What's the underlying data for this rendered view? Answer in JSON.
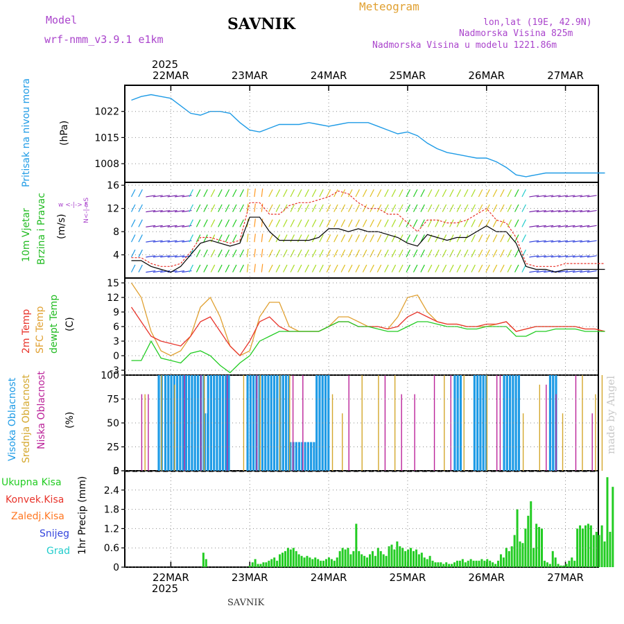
{
  "header": {
    "model_label": "Model",
    "model_name": "wrf-nmm_v3.9.1  e1km",
    "title": "SAVNIK",
    "meteogram_label": "Meteogram",
    "lonlat": "lon,lat (19E, 42.9N)",
    "altitude": "Nadmorska Visina 825m",
    "model_altitude": "Nadmorska Visina u modelu 1221.86m"
  },
  "footer": {
    "station": "SAVNIK",
    "credit": "made by Angel"
  },
  "colors": {
    "pressure": "#1e9be6",
    "wind_label": "#22bb22",
    "wind_dir": "#aa44cc",
    "temp_2m": "#e8332a",
    "temp_sfc": "#e0a030",
    "dewpt": "#22cc22",
    "cloud_high": "#1e9be6",
    "cloud_mid": "#d4a72c",
    "cloud_low": "#bb2299",
    "precip_total": "#22cc22",
    "precip_conv": "#e8332a",
    "precip_frozen": "#ff7722",
    "snow": "#3344dd",
    "hail": "#22cccc"
  },
  "time_axis": {
    "year": "2025",
    "days": [
      "22MAR",
      "23MAR",
      "24MAR",
      "25MAR",
      "26MAR",
      "27MAR"
    ]
  },
  "panels": {
    "pressure": {
      "label": "Pritisak na nivou mora",
      "unit": "(hPa)"
    },
    "wind": {
      "label1": "10m  Vjetar",
      "label2": "Brzina i Pravac",
      "unit": "(m/s)",
      "compass": "w  <-|->  E",
      "compass_ns": "N<-|->S"
    },
    "temp": {
      "label1": "2m Temp",
      "label2": "SFC Temp",
      "label3": "dewpt Temp",
      "unit": "(C)"
    },
    "cloud": {
      "label1": "Visoka Oblacnost",
      "label2": "Srednja Oblacnost",
      "label3": "Niska Oblacnost",
      "unit": "(%)"
    },
    "precip": {
      "unit": "1hr Precip (mm)",
      "legend": [
        "Ukupna Kisa",
        "Konvek.Kisa",
        "Zaledj.Kisa",
        "Snijeg",
        "Grad"
      ]
    }
  },
  "chart_data": [
    {
      "type": "line",
      "name": "pressure",
      "x": [
        0,
        3,
        6,
        9,
        12,
        15,
        18,
        21,
        24,
        27,
        30,
        33,
        36,
        39,
        42,
        45,
        48,
        51,
        54,
        57,
        60,
        63,
        66,
        69,
        72,
        75,
        78,
        81,
        84,
        87,
        90,
        93,
        96,
        99,
        102,
        105,
        108,
        111,
        114,
        117,
        120,
        123,
        126,
        129,
        132,
        135,
        138,
        141,
        144
      ],
      "series": [
        {
          "name": "Pritisak na nivou mora",
          "values": [
            1025,
            1026,
            1026.5,
            1026,
            1025.5,
            1023.5,
            1021.5,
            1021,
            1022,
            1022,
            1021.5,
            1019,
            1017,
            1016.5,
            1017.5,
            1018.5,
            1018.5,
            1018.5,
            1019,
            1018.5,
            1018,
            1018.5,
            1019,
            1019,
            1019,
            1018,
            1017,
            1016,
            1016.5,
            1015.5,
            1013.5,
            1012,
            1011,
            1010.5,
            1010,
            1009.5,
            1009.5,
            1008.5,
            1007,
            1005,
            1004.5,
            1005,
            1005.5,
            1005.5,
            1005.5,
            1005.5,
            1005.5,
            1005.5,
            1005.5
          ]
        }
      ],
      "ylim": [
        1003,
        1029
      ],
      "yticks": [
        1008,
        1015,
        1022
      ]
    },
    {
      "type": "line",
      "name": "wind",
      "x": [
        0,
        3,
        6,
        9,
        12,
        15,
        18,
        21,
        24,
        27,
        30,
        33,
        36,
        39,
        42,
        45,
        48,
        51,
        54,
        57,
        60,
        63,
        66,
        69,
        72,
        75,
        78,
        81,
        84,
        87,
        90,
        93,
        96,
        99,
        102,
        105,
        108,
        111,
        114,
        117,
        120,
        123,
        126,
        129,
        132,
        135,
        138,
        141,
        144
      ],
      "series": [
        {
          "name": "10m Vjetar",
          "values": [
            3,
            3,
            2,
            1.5,
            1,
            2,
            4,
            6,
            6.5,
            6,
            5.5,
            6,
            10.5,
            10.5,
            8,
            6.5,
            6.5,
            6.5,
            6.5,
            7,
            8.5,
            8.5,
            8,
            8.5,
            8,
            8,
            7.5,
            7,
            6,
            5.5,
            7.5,
            7,
            6.5,
            7,
            7,
            8,
            9,
            8,
            8,
            6,
            2,
            1.5,
            1.5,
            1,
            1.5,
            1.5,
            1.5,
            1.5,
            1.5
          ]
        },
        {
          "name": "gust",
          "values": [
            3.5,
            3.5,
            2.5,
            2,
            2,
            2.5,
            4.5,
            7,
            7,
            6.5,
            6,
            6.5,
            13,
            13,
            11,
            11,
            12.5,
            13,
            13,
            13.5,
            14,
            15,
            14.5,
            13,
            12,
            12,
            11,
            11,
            9.5,
            8,
            10,
            10,
            9.5,
            9.5,
            10,
            11,
            12,
            10,
            9.5,
            7,
            2.5,
            2,
            2,
            2,
            2.5,
            2.5,
            2.5,
            2.5,
            2.5
          ]
        }
      ],
      "ylim": [
        0,
        16.5
      ],
      "yticks": [
        4,
        8,
        12,
        16
      ]
    },
    {
      "type": "line",
      "name": "temperature",
      "x": [
        0,
        3,
        6,
        9,
        12,
        15,
        18,
        21,
        24,
        27,
        30,
        33,
        36,
        39,
        42,
        45,
        48,
        51,
        54,
        57,
        60,
        63,
        66,
        69,
        72,
        75,
        78,
        81,
        84,
        87,
        90,
        93,
        96,
        99,
        102,
        105,
        108,
        111,
        114,
        117,
        120,
        123,
        126,
        129,
        132,
        135,
        138,
        141,
        144
      ],
      "series": [
        {
          "name": "2m Temp",
          "values": [
            10,
            7,
            4,
            3,
            2.5,
            2,
            4,
            7,
            8,
            5,
            2,
            0,
            3,
            7,
            8,
            6,
            5,
            5,
            5,
            5,
            6,
            7,
            7,
            6,
            6,
            6,
            5.5,
            6,
            8,
            9,
            8,
            7,
            6.5,
            6.5,
            6,
            6,
            6.5,
            6.5,
            7,
            5,
            5.5,
            6,
            6,
            6,
            6,
            6,
            5.5,
            5.5,
            5
          ]
        },
        {
          "name": "SFC Temp",
          "values": [
            15,
            12,
            5,
            1,
            0,
            1,
            4,
            10,
            12,
            8,
            2,
            0,
            1,
            8,
            11,
            11,
            6,
            5,
            5,
            5,
            6,
            8,
            8,
            7,
            6,
            6,
            5.5,
            8,
            12,
            12.5,
            9,
            7,
            6.5,
            6.5,
            6,
            6,
            6,
            6.5,
            7,
            5,
            5.5,
            6,
            6,
            6,
            6,
            6,
            5.5,
            5.5,
            5
          ]
        },
        {
          "name": "dewpt Temp",
          "values": [
            -1,
            -1,
            3,
            -0.5,
            -1,
            -1.5,
            0.5,
            1,
            0,
            -2,
            -3.5,
            -1.5,
            0,
            3,
            4,
            5,
            5,
            5,
            5,
            5,
            6,
            7,
            7,
            6,
            6,
            5.5,
            5,
            5,
            6,
            7,
            7,
            6.5,
            6,
            6,
            5.5,
            5.5,
            6,
            6,
            6,
            4,
            4,
            5,
            5,
            5.5,
            5.5,
            5.5,
            5,
            5,
            5
          ]
        }
      ],
      "ylim": [
        -4,
        16
      ],
      "yticks": [
        -3,
        0,
        3,
        6,
        9,
        12,
        15
      ]
    },
    {
      "type": "bar",
      "name": "cloud",
      "series": [
        {
          "name": "Visoka Oblacnost",
          "intervals": [
            [
              8,
              9,
              100
            ],
            [
              9,
              10,
              0
            ],
            [
              10,
              22,
              100
            ],
            [
              22,
              23,
              60
            ],
            [
              23,
              30,
              100
            ],
            [
              30,
              35,
              0
            ],
            [
              35,
              48,
              100
            ],
            [
              48,
              56,
              30
            ],
            [
              56,
              60,
              100
            ],
            [
              60,
              75,
              0
            ],
            [
              75,
              98,
              0
            ],
            [
              98,
              100,
              100
            ],
            [
              100,
              104,
              0
            ],
            [
              104,
              108,
              100
            ],
            [
              108,
              113,
              0
            ],
            [
              113,
              118,
              100
            ],
            [
              118,
              127,
              0
            ],
            [
              127,
              129,
              100
            ]
          ]
        },
        {
          "name": "Srednja Oblacnost",
          "intervals": [
            [
              4,
              5,
              80
            ],
            [
              9,
              10,
              100
            ],
            [
              13,
              14,
              90
            ],
            [
              22,
              23,
              100
            ],
            [
              34,
              35,
              100
            ],
            [
              39,
              40,
              100
            ],
            [
              45,
              46,
              100
            ],
            [
              48,
              49,
              100
            ],
            [
              61,
              62,
              80
            ],
            [
              64,
              65,
              60
            ],
            [
              70,
              71,
              100
            ],
            [
              75,
              76,
              100
            ],
            [
              80,
              81,
              100
            ],
            [
              95,
              96,
              100
            ],
            [
              101,
              102,
              100
            ],
            [
              108,
              109,
              100
            ],
            [
              119,
              120,
              60
            ],
            [
              124,
              125,
              90
            ],
            [
              131,
              132,
              60
            ],
            [
              137,
              138,
              100
            ],
            [
              141,
              142,
              80
            ],
            [
              143,
              144,
              100
            ]
          ]
        },
        {
          "name": "Niska Oblacnost",
          "intervals": [
            [
              3,
              4,
              80
            ],
            [
              5,
              6,
              80
            ],
            [
              16,
              17,
              100
            ],
            [
              21,
              22,
              100
            ],
            [
              29,
              30,
              100
            ],
            [
              38,
              39,
              100
            ],
            [
              49,
              50,
              100
            ],
            [
              52,
              53,
              100
            ],
            [
              66,
              67,
              100
            ],
            [
              77,
              78,
              100
            ],
            [
              82,
              83,
              80
            ],
            [
              86,
              87,
              80
            ],
            [
              92,
              93,
              100
            ],
            [
              97,
              98,
              100
            ],
            [
              111,
              112,
              100
            ],
            [
              112,
              113,
              100
            ],
            [
              126,
              127,
              90
            ],
            [
              129,
              130,
              80
            ],
            [
              135,
              136,
              100
            ],
            [
              140,
              141,
              60
            ]
          ]
        }
      ],
      "ylim": [
        0,
        100
      ],
      "yticks": [
        0,
        25,
        50,
        75,
        100
      ]
    },
    {
      "type": "bar",
      "name": "precipitation",
      "series": [
        {
          "name": "Ukupna Kisa",
          "values": [
            0,
            0,
            0,
            0,
            0,
            0,
            0,
            0,
            0,
            0,
            0,
            0,
            0,
            0,
            0,
            0,
            0,
            0,
            0,
            0,
            0,
            0,
            0,
            0,
            0,
            0,
            0.45,
            0.25,
            0,
            0,
            0,
            0,
            0,
            0,
            0,
            0,
            0,
            0,
            0,
            0,
            0,
            0,
            0,
            0.05,
            0.15,
            0.25,
            0.1,
            0.1,
            0.15,
            0.15,
            0.2,
            0.25,
            0.3,
            0.2,
            0.4,
            0.45,
            0.5,
            0.6,
            0.55,
            0.6,
            0.5,
            0.4,
            0.35,
            0.3,
            0.35,
            0.3,
            0.25,
            0.3,
            0.25,
            0.2,
            0.2,
            0.25,
            0.3,
            0.25,
            0.2,
            0.3,
            0.5,
            0.6,
            0.55,
            0.6,
            0.4,
            0.5,
            1.35,
            0.5,
            0.4,
            0.35,
            0.3,
            0.4,
            0.5,
            0.35,
            0.6,
            0.5,
            0.4,
            0.35,
            0.65,
            0.7,
            0.55,
            0.8,
            0.65,
            0.6,
            0.5,
            0.55,
            0.6,
            0.5,
            0.55,
            0.4,
            0.45,
            0.3,
            0.25,
            0.35,
            0.2,
            0.15,
            0.15,
            0.15,
            0.1,
            0.15,
            0.1,
            0.1,
            0.15,
            0.2,
            0.2,
            0.25,
            0.15,
            0.2,
            0.25,
            0.2,
            0.2,
            0.2,
            0.25,
            0.2,
            0.25,
            0.2,
            0.15,
            0.1,
            0.2,
            0.4,
            0.3,
            0.6,
            0.5,
            0.65,
            1.0,
            1.8,
            0.8,
            0.75,
            1.2,
            1.6,
            2.05,
            0.6,
            1.35,
            1.25,
            1.2,
            0.2,
            0.15,
            0.1,
            0.5,
            0.3,
            0.1,
            0.05,
            0.05,
            0.1,
            0.2,
            0.3,
            0.2,
            1.2,
            1.3,
            1.2,
            1.3,
            1.35,
            1.3,
            1.0,
            1.1,
            1.0,
            1.3,
            0.8,
            2.8,
            1.1,
            2.5
          ]
        }
      ],
      "x_start": 0,
      "x_step": 0.83,
      "ylim": [
        0,
        3
      ],
      "yticks": [
        0,
        0.6,
        1.2,
        1.8,
        2.4,
        3
      ]
    }
  ]
}
